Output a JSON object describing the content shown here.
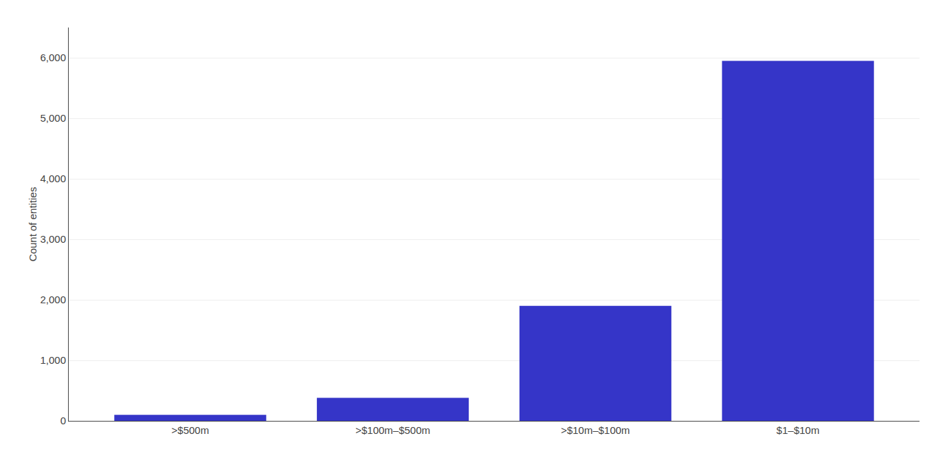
{
  "chart_data": {
    "type": "bar",
    "categories": [
      ">$500m",
      ">$100m–$500m",
      ">$10m–$100m",
      "$1–$10m"
    ],
    "values": [
      100,
      380,
      1900,
      5950
    ],
    "color": "#3535c8",
    "ylabel": "Count of entities",
    "ylim": [
      0,
      6500
    ],
    "yticks": [
      0,
      {
        "value": 1000,
        "label": "1,000"
      },
      {
        "value": 2000,
        "label": "2,000"
      },
      {
        "value": 3000,
        "label": "3,000"
      },
      {
        "value": 4000,
        "label": "4,000"
      },
      {
        "value": 5000,
        "label": "5,000"
      },
      {
        "value": 6000,
        "label": "6,000"
      }
    ],
    "grid": true
  }
}
